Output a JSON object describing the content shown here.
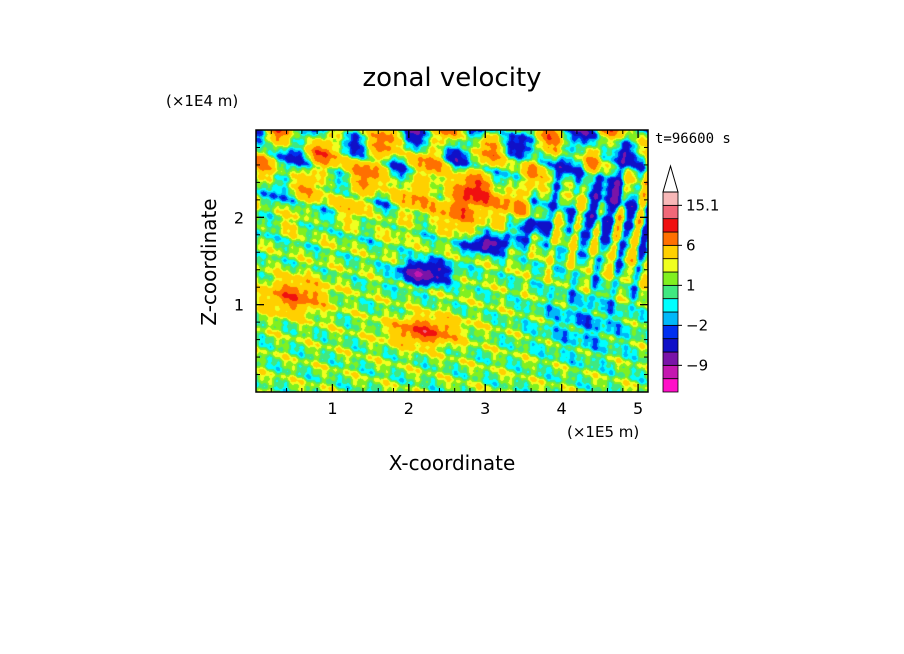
{
  "chart_data": {
    "type": "heatmap",
    "title": "zonal velocity",
    "xlabel": "X-coordinate",
    "ylabel": "Z-coordinate",
    "x_unit": "(×1E5 m)",
    "y_unit": "(×1E4 m)",
    "time_label": "t=96600 s",
    "xlim": [
      0,
      5.13
    ],
    "ylim": [
      0,
      3.0
    ],
    "x_ticks": [
      "1",
      "2",
      "3",
      "4",
      "5"
    ],
    "y_ticks": [
      "1",
      "2"
    ],
    "x_tick_values": [
      1,
      2,
      3,
      4,
      5
    ],
    "y_tick_values": [
      1,
      2
    ],
    "colorbar": {
      "labels": [
        "15.1",
        "6",
        "1",
        "−2",
        "−9"
      ],
      "label_levels": [
        15.1,
        6,
        1,
        -2,
        -9
      ],
      "levels": [
        -15,
        -12,
        -9,
        -6,
        -3,
        -2,
        -1,
        0,
        1,
        2,
        3,
        6,
        9,
        12,
        15.1
      ],
      "colors": [
        "#ff10c8",
        "#c418b0",
        "#7a14a8",
        "#1010c8",
        "#0030f0",
        "#00b8f8",
        "#00ffff",
        "#40e880",
        "#80f020",
        "#f0ff20",
        "#ffd000",
        "#ff7000",
        "#f01010",
        "#f06878",
        "#f8b8b8"
      ],
      "extend_top": true
    },
    "features": [
      {
        "kind": "jet",
        "sign": "negative",
        "x": 2.2,
        "z": 1.37,
        "peak": -10
      },
      {
        "kind": "jet",
        "sign": "negative",
        "x": 3.05,
        "z": 1.7,
        "peak": -9
      },
      {
        "kind": "jet",
        "sign": "negative",
        "x": 3.6,
        "z": 1.9,
        "peak": -6
      },
      {
        "kind": "jet",
        "sign": "positive",
        "x": 2.2,
        "z": 0.7,
        "peak": 8
      },
      {
        "kind": "jet",
        "sign": "positive",
        "x": 2.8,
        "z": 2.2,
        "peak": 7
      },
      {
        "kind": "jet",
        "sign": "positive",
        "x": 0.5,
        "z": 1.1,
        "peak": 7
      }
    ]
  }
}
